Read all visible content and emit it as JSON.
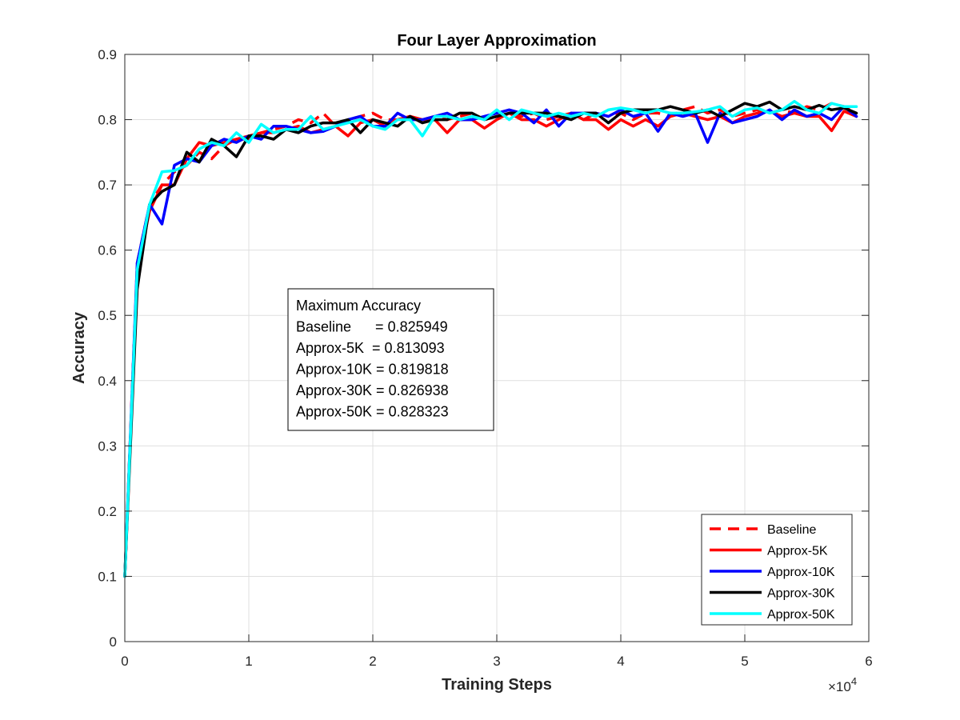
{
  "chart_data": {
    "type": "line",
    "title": "Four Layer Approximation",
    "xlabel": "Training Steps",
    "ylabel": "Accuracy",
    "xlim": [
      0,
      60000
    ],
    "ylim": [
      0,
      0.9
    ],
    "x_ticks": [
      0,
      10000,
      20000,
      30000,
      40000,
      50000,
      60000
    ],
    "x_tick_labels": [
      "0",
      "1",
      "2",
      "3",
      "4",
      "5",
      "6"
    ],
    "x_exponent_label": "×10",
    "x_exponent_power": "4",
    "y_ticks": [
      0,
      0.1,
      0.2,
      0.3,
      0.4,
      0.5,
      0.6,
      0.7,
      0.8,
      0.9
    ],
    "y_tick_labels": [
      "0",
      "0.1",
      "0.2",
      "0.3",
      "0.4",
      "0.5",
      "0.6",
      "0.7",
      "0.8",
      "0.9"
    ],
    "grid": true,
    "legend_position": "bottom-right",
    "annotation": {
      "lines": [
        "Maximum Accuracy",
        "Baseline      = 0.825949",
        "Approx-5K  = 0.813093",
        "Approx-10K = 0.819818",
        "Approx-30K = 0.826938",
        "Approx-50K = 0.828323"
      ]
    },
    "series": [
      {
        "name": "Baseline",
        "color": "#ff0000",
        "dash": "dashed",
        "x": [
          0,
          1000,
          2000,
          3000,
          4000,
          5000,
          6000,
          7000,
          8000,
          9000,
          10000,
          11000,
          12000,
          13000,
          14000,
          15000,
          16000,
          17000,
          18000,
          19000,
          20000,
          21000,
          22000,
          23000,
          24000,
          25000,
          26000,
          27000,
          28000,
          29000,
          30000,
          31000,
          32000,
          33000,
          34000,
          35000,
          36000,
          37000,
          38000,
          39000,
          40000,
          41000,
          42000,
          43000,
          44000,
          45000,
          46000,
          47000,
          48000,
          49000,
          50000,
          51000,
          52000,
          53000,
          54000,
          55000,
          56000,
          57000,
          58000,
          59000
        ],
        "y": [
          0.1,
          0.58,
          0.67,
          0.7,
          0.72,
          0.73,
          0.75,
          0.74,
          0.76,
          0.77,
          0.77,
          0.78,
          0.785,
          0.79,
          0.8,
          0.795,
          0.81,
          0.79,
          0.8,
          0.805,
          0.81,
          0.8,
          0.8,
          0.805,
          0.8,
          0.805,
          0.8,
          0.805,
          0.81,
          0.8,
          0.805,
          0.81,
          0.805,
          0.81,
          0.8,
          0.805,
          0.81,
          0.8,
          0.81,
          0.805,
          0.81,
          0.8,
          0.81,
          0.81,
          0.805,
          0.815,
          0.82,
          0.81,
          0.815,
          0.805,
          0.81,
          0.815,
          0.81,
          0.815,
          0.81,
          0.82,
          0.815,
          0.825,
          0.82,
          0.815
        ]
      },
      {
        "name": "Approx-5K",
        "color": "#ff0000",
        "dash": "solid",
        "x": [
          0,
          1000,
          2000,
          3000,
          4000,
          5000,
          6000,
          7000,
          8000,
          9000,
          10000,
          11000,
          12000,
          13000,
          14000,
          15000,
          16000,
          17000,
          18000,
          19000,
          20000,
          21000,
          22000,
          23000,
          24000,
          25000,
          26000,
          27000,
          28000,
          29000,
          30000,
          31000,
          32000,
          33000,
          34000,
          35000,
          36000,
          37000,
          38000,
          39000,
          40000,
          41000,
          42000,
          43000,
          44000,
          45000,
          46000,
          47000,
          48000,
          49000,
          50000,
          51000,
          52000,
          53000,
          54000,
          55000,
          56000,
          57000,
          58000,
          59000
        ],
        "y": [
          0.1,
          0.57,
          0.66,
          0.7,
          0.7,
          0.74,
          0.765,
          0.76,
          0.765,
          0.77,
          0.775,
          0.78,
          0.78,
          0.785,
          0.79,
          0.78,
          0.785,
          0.79,
          0.775,
          0.795,
          0.8,
          0.79,
          0.8,
          0.805,
          0.8,
          0.8,
          0.78,
          0.8,
          0.8,
          0.787,
          0.8,
          0.81,
          0.8,
          0.8,
          0.79,
          0.8,
          0.81,
          0.8,
          0.8,
          0.785,
          0.8,
          0.79,
          0.8,
          0.79,
          0.805,
          0.81,
          0.805,
          0.8,
          0.805,
          0.795,
          0.805,
          0.81,
          0.813,
          0.805,
          0.81,
          0.805,
          0.805,
          0.783,
          0.813,
          0.805
        ]
      },
      {
        "name": "Approx-10K",
        "color": "#0000ff",
        "dash": "solid",
        "x": [
          0,
          1000,
          2000,
          3000,
          4000,
          5000,
          6000,
          7000,
          8000,
          9000,
          10000,
          11000,
          12000,
          13000,
          14000,
          15000,
          16000,
          17000,
          18000,
          19000,
          20000,
          21000,
          22000,
          23000,
          24000,
          25000,
          26000,
          27000,
          28000,
          29000,
          30000,
          31000,
          32000,
          33000,
          34000,
          35000,
          36000,
          37000,
          38000,
          39000,
          40000,
          41000,
          42000,
          43000,
          44000,
          45000,
          46000,
          47000,
          48000,
          49000,
          50000,
          51000,
          52000,
          53000,
          54000,
          55000,
          56000,
          57000,
          58000,
          59000
        ],
        "y": [
          0.1,
          0.58,
          0.67,
          0.64,
          0.73,
          0.74,
          0.735,
          0.76,
          0.77,
          0.765,
          0.775,
          0.77,
          0.79,
          0.79,
          0.785,
          0.78,
          0.782,
          0.79,
          0.8,
          0.805,
          0.79,
          0.79,
          0.81,
          0.8,
          0.8,
          0.805,
          0.81,
          0.8,
          0.8,
          0.805,
          0.81,
          0.815,
          0.81,
          0.795,
          0.815,
          0.79,
          0.81,
          0.81,
          0.81,
          0.805,
          0.815,
          0.805,
          0.81,
          0.782,
          0.81,
          0.805,
          0.81,
          0.765,
          0.81,
          0.795,
          0.8,
          0.805,
          0.815,
          0.8,
          0.815,
          0.805,
          0.81,
          0.8,
          0.82,
          0.805
        ]
      },
      {
        "name": "Approx-30K",
        "color": "#000000",
        "dash": "solid",
        "x": [
          0,
          1000,
          2000,
          3000,
          4000,
          5000,
          6000,
          7000,
          8000,
          9000,
          10000,
          11000,
          12000,
          13000,
          14000,
          15000,
          16000,
          17000,
          18000,
          19000,
          20000,
          21000,
          22000,
          23000,
          24000,
          25000,
          26000,
          27000,
          28000,
          29000,
          30000,
          31000,
          32000,
          33000,
          34000,
          35000,
          36000,
          37000,
          38000,
          39000,
          40000,
          41000,
          42000,
          43000,
          44000,
          45000,
          46000,
          47000,
          48000,
          49000,
          50000,
          51000,
          52000,
          53000,
          54000,
          55000,
          56000,
          57000,
          58000,
          59000
        ],
        "y": [
          0.1,
          0.54,
          0.67,
          0.69,
          0.7,
          0.75,
          0.735,
          0.77,
          0.76,
          0.743,
          0.775,
          0.775,
          0.77,
          0.785,
          0.78,
          0.79,
          0.795,
          0.795,
          0.8,
          0.78,
          0.8,
          0.795,
          0.79,
          0.805,
          0.795,
          0.8,
          0.8,
          0.81,
          0.81,
          0.8,
          0.805,
          0.81,
          0.81,
          0.81,
          0.81,
          0.805,
          0.8,
          0.81,
          0.81,
          0.795,
          0.81,
          0.815,
          0.815,
          0.815,
          0.82,
          0.815,
          0.81,
          0.815,
          0.805,
          0.815,
          0.825,
          0.82,
          0.827,
          0.815,
          0.82,
          0.815,
          0.822,
          0.815,
          0.818,
          0.81
        ]
      },
      {
        "name": "Approx-50K",
        "color": "#00ffff",
        "dash": "solid",
        "x": [
          0,
          1000,
          2000,
          3000,
          4000,
          5000,
          6000,
          7000,
          8000,
          9000,
          10000,
          11000,
          12000,
          13000,
          14000,
          15000,
          16000,
          17000,
          18000,
          19000,
          20000,
          21000,
          22000,
          23000,
          24000,
          25000,
          26000,
          27000,
          28000,
          29000,
          30000,
          31000,
          32000,
          33000,
          34000,
          35000,
          36000,
          37000,
          38000,
          39000,
          40000,
          41000,
          42000,
          43000,
          44000,
          45000,
          46000,
          47000,
          48000,
          49000,
          50000,
          51000,
          52000,
          53000,
          54000,
          55000,
          56000,
          57000,
          58000,
          59000
        ],
        "y": [
          0.1,
          0.57,
          0.67,
          0.72,
          0.722,
          0.73,
          0.755,
          0.765,
          0.76,
          0.78,
          0.765,
          0.793,
          0.78,
          0.785,
          0.785,
          0.805,
          0.785,
          0.79,
          0.795,
          0.8,
          0.79,
          0.785,
          0.8,
          0.8,
          0.775,
          0.805,
          0.805,
          0.8,
          0.805,
          0.8,
          0.815,
          0.8,
          0.815,
          0.81,
          0.805,
          0.81,
          0.805,
          0.81,
          0.805,
          0.815,
          0.818,
          0.815,
          0.81,
          0.815,
          0.81,
          0.81,
          0.812,
          0.815,
          0.82,
          0.805,
          0.815,
          0.818,
          0.81,
          0.815,
          0.828,
          0.815,
          0.81,
          0.825,
          0.82,
          0.82
        ]
      }
    ]
  }
}
